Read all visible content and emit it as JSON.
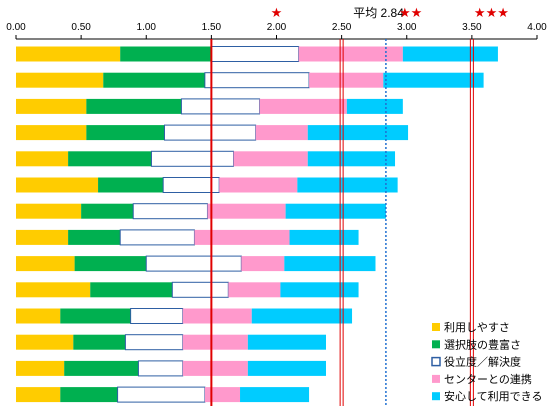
{
  "chart_data": {
    "type": "bar",
    "orientation": "horizontal",
    "stacked": true,
    "xlim": [
      0,
      4
    ],
    "xticks": [
      "0.00",
      "0.50",
      "1.00",
      "1.50",
      "2.00",
      "2.50",
      "3.00",
      "3.50",
      "4.00"
    ],
    "grid": false,
    "legend_position": "bottom-right",
    "series": [
      {
        "name": "利用しやすさ",
        "color": "#ffcc00",
        "style": "filled",
        "values": [
          0.8,
          0.67,
          0.54,
          0.54,
          0.4,
          0.63,
          0.5,
          0.4,
          0.45,
          0.57,
          0.34,
          0.44,
          0.37,
          0.34
        ]
      },
      {
        "name": "選択肢の豊富さ",
        "color": "#00b050",
        "style": "filled",
        "values": [
          0.7,
          0.78,
          0.73,
          0.6,
          0.64,
          0.5,
          0.4,
          0.4,
          0.55,
          0.63,
          0.54,
          0.4,
          0.57,
          0.44
        ]
      },
      {
        "name": "役立度／解決度",
        "color": "#2e5fa3",
        "style": "outline",
        "values": [
          0.67,
          0.8,
          0.6,
          0.7,
          0.63,
          0.43,
          0.57,
          0.57,
          0.73,
          0.43,
          0.4,
          0.44,
          0.34,
          0.67
        ]
      },
      {
        "name": "センターとの連携",
        "color": "#ff99cc",
        "style": "filled",
        "values": [
          0.8,
          0.57,
          0.67,
          0.4,
          0.57,
          0.6,
          0.6,
          0.73,
          0.33,
          0.4,
          0.53,
          0.5,
          0.5,
          0.27
        ]
      },
      {
        "name": "安心して利用できる",
        "color": "#00ccff",
        "style": "filled",
        "values": [
          0.73,
          0.77,
          0.43,
          0.77,
          0.67,
          0.77,
          0.77,
          0.53,
          0.7,
          0.6,
          0.77,
          0.6,
          0.6,
          0.53
        ]
      }
    ],
    "reference_lines": [
      {
        "x": 1.5,
        "style": "solid",
        "color": "#e00000"
      },
      {
        "x": 2.5,
        "style": "double",
        "color": "#e00000",
        "label": "★",
        "label_x": 2.0
      },
      {
        "x": 2.84,
        "style": "dotted",
        "color": "#1f6fd0",
        "label": "平均 2.84"
      },
      {
        "x": 3.0,
        "style": "none",
        "label": "★★",
        "label_x": 3.03
      },
      {
        "x": 3.5,
        "style": "double",
        "color": "#e00000",
        "label": "★★★",
        "label_x": 3.65
      }
    ]
  }
}
